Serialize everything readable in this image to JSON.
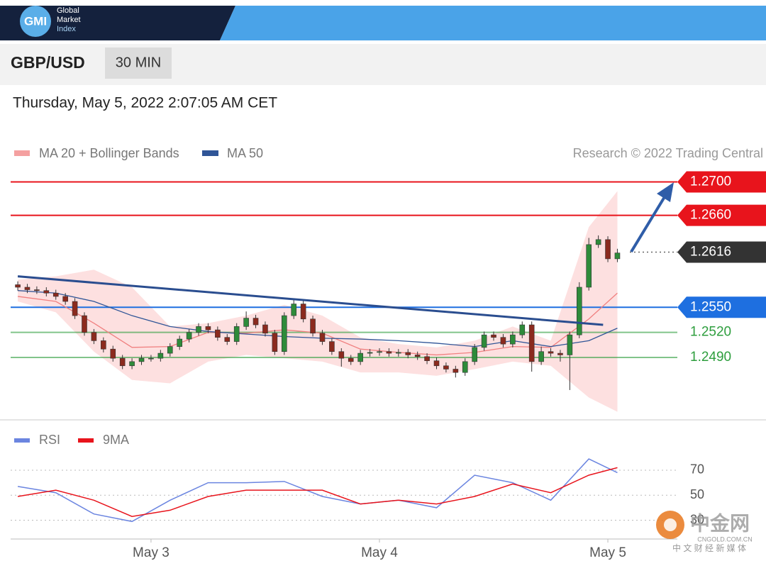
{
  "header": {
    "logo": "GMI",
    "brand": [
      "Global",
      "Market",
      "Index"
    ]
  },
  "symbol": "GBP/USD",
  "timeframe": "30 MIN",
  "timestamp": "Thursday, May 5, 2022 2:07:05 AM CET",
  "watermark": {
    "name": "中金网",
    "url": "CNGOLD.COM.CN",
    "tagline": "中 文 财 经 新 媒 体"
  },
  "chart_data": [
    {
      "type": "candlestick",
      "source": "Research © 2022 Trading Central",
      "xlim": [
        -0.75,
        69.3
      ],
      "ylim": [
        1.2417,
        1.2714
      ],
      "up_color": "#2e8b3a",
      "down_color": "#8b2a1e",
      "open": [
        1.2577,
        1.2574,
        1.2571,
        1.257,
        1.2567,
        1.2563,
        1.2557,
        1.254,
        1.252,
        1.251,
        1.25,
        1.2489,
        1.248,
        1.2485,
        1.2489,
        1.2489,
        1.2495,
        1.2503,
        1.2512,
        1.252,
        1.2527,
        1.2523,
        1.2514,
        1.2509,
        1.2527,
        1.2537,
        1.2529,
        1.2519,
        1.2497,
        1.254,
        1.2554,
        1.2536,
        1.2519,
        1.2509,
        1.2497,
        1.2489,
        1.2485,
        1.2495,
        1.2496,
        1.2497,
        1.2495,
        1.2496,
        1.2493,
        1.2491,
        1.2486,
        1.248,
        1.2476,
        1.2472,
        1.2485,
        1.2502,
        1.2517,
        1.2514,
        1.2506,
        1.2517,
        1.2529,
        1.2485,
        1.2497,
        1.2495,
        1.2493,
        1.2517,
        1.2574,
        1.2625,
        1.2631,
        1.2608
      ],
      "high": [
        1.2581,
        1.2578,
        1.2575,
        1.2574,
        1.2571,
        1.2567,
        1.2561,
        1.2544,
        1.2524,
        1.2514,
        1.2504,
        1.2493,
        1.2489,
        1.2493,
        1.2493,
        1.2499,
        1.2507,
        1.2516,
        1.2524,
        1.2531,
        1.2531,
        1.2527,
        1.2518,
        1.2531,
        1.2545,
        1.2541,
        1.2533,
        1.2523,
        1.2544,
        1.256,
        1.2558,
        1.254,
        1.2523,
        1.2513,
        1.2501,
        1.2493,
        1.2499,
        1.25,
        1.2501,
        1.2501,
        1.25,
        1.25,
        1.2497,
        1.2495,
        1.249,
        1.2484,
        1.248,
        1.2489,
        1.2506,
        1.2521,
        1.2521,
        1.2518,
        1.2521,
        1.2533,
        1.2533,
        1.2503,
        1.2501,
        1.2499,
        1.2521,
        1.258,
        1.2633,
        1.2636,
        1.2635,
        1.262
      ],
      "low": [
        1.257,
        1.2567,
        1.2566,
        1.2563,
        1.2559,
        1.2553,
        1.2536,
        1.2516,
        1.2506,
        1.2496,
        1.2485,
        1.2476,
        1.2476,
        1.2481,
        1.2485,
        1.2485,
        1.2491,
        1.2499,
        1.2508,
        1.2516,
        1.2519,
        1.251,
        1.2505,
        1.2505,
        1.2523,
        1.2525,
        1.2515,
        1.2493,
        1.2493,
        1.2536,
        1.2532,
        1.2515,
        1.2505,
        1.2493,
        1.2479,
        1.2481,
        1.2481,
        1.2491,
        1.2492,
        1.2491,
        1.2491,
        1.2489,
        1.2487,
        1.2482,
        1.2476,
        1.2472,
        1.2466,
        1.2468,
        1.2481,
        1.2498,
        1.251,
        1.2502,
        1.2502,
        1.2513,
        1.2473,
        1.2481,
        1.2491,
        1.2485,
        1.2451,
        1.2513,
        1.257,
        1.2621,
        1.2604,
        1.2604
      ],
      "close": [
        1.2574,
        1.2571,
        1.257,
        1.2567,
        1.2563,
        1.2557,
        1.254,
        1.252,
        1.251,
        1.25,
        1.2489,
        1.248,
        1.2485,
        1.2489,
        1.2489,
        1.2495,
        1.2503,
        1.2512,
        1.252,
        1.2527,
        1.2523,
        1.2514,
        1.2509,
        1.2527,
        1.2537,
        1.2529,
        1.2519,
        1.2497,
        1.254,
        1.2554,
        1.2536,
        1.2519,
        1.2509,
        1.2497,
        1.2489,
        1.2485,
        1.2495,
        1.2496,
        1.2497,
        1.2495,
        1.2496,
        1.2493,
        1.2491,
        1.2486,
        1.248,
        1.2476,
        1.2472,
        1.2485,
        1.2502,
        1.2517,
        1.2514,
        1.2506,
        1.2517,
        1.2529,
        1.2485,
        1.2497,
        1.2495,
        1.2493,
        1.2517,
        1.2574,
        1.2625,
        1.2631,
        1.2608,
        1.2615
      ],
      "overlays": [
        {
          "name": "MA 20 + Bollinger Bands",
          "color": "#f08080",
          "band_color": "#fde0e0",
          "x": [
            0,
            4,
            8,
            12,
            16,
            20,
            24,
            28,
            32,
            36,
            40,
            44,
            48,
            52,
            56,
            60,
            63
          ],
          "values": [
            1.2563,
            1.2557,
            1.2531,
            1.2502,
            1.2503,
            1.252,
            1.2519,
            1.2523,
            1.2519,
            1.25,
            1.2496,
            1.2493,
            1.2496,
            1.2503,
            1.2502,
            1.2536,
            1.2567
          ],
          "upper": [
            1.2583,
            1.2587,
            1.2595,
            1.2574,
            1.2527,
            1.2531,
            1.254,
            1.2553,
            1.254,
            1.2514,
            1.2506,
            1.2502,
            1.251,
            1.2527,
            1.251,
            1.2646,
            1.2689
          ],
          "lower": [
            1.2557,
            1.2544,
            1.2497,
            1.2463,
            1.2459,
            1.2485,
            1.2493,
            1.2489,
            1.2485,
            1.2472,
            1.2472,
            1.2468,
            1.2476,
            1.2485,
            1.248,
            1.2442,
            1.2425
          ]
        },
        {
          "name": "MA 50",
          "color": "#2f5597",
          "x": [
            0,
            4,
            8,
            12,
            16,
            20,
            24,
            28,
            32,
            36,
            40,
            44,
            48,
            52,
            56,
            60,
            63
          ],
          "values": [
            1.257,
            1.2567,
            1.2557,
            1.254,
            1.2527,
            1.2521,
            1.2518,
            1.2515,
            1.2513,
            1.2512,
            1.251,
            1.2507,
            1.2503,
            1.251,
            1.2503,
            1.251,
            1.2525
          ]
        }
      ],
      "trendline": {
        "color": "#2a4d8f",
        "x": [
          0,
          61.5
        ],
        "values": [
          1.2587,
          1.2529
        ]
      },
      "levels": [
        {
          "value": 1.27,
          "label": "1.2700",
          "color": "#e8141c",
          "style": "solid",
          "box": true
        },
        {
          "value": 1.266,
          "label": "1.2660",
          "color": "#e8141c",
          "style": "solid",
          "box": true
        },
        {
          "value": 1.2616,
          "label": "1.2616",
          "color": "#333333",
          "style": "dotted",
          "box": true
        },
        {
          "value": 1.255,
          "label": "1.2550",
          "color": "#1e6fe0",
          "style": "solid",
          "box": true
        },
        {
          "value": 1.252,
          "label": "1.2520",
          "color": "#2e9e3e",
          "style": "solid",
          "box": false
        },
        {
          "value": 1.249,
          "label": "1.2490",
          "color": "#2e9e3e",
          "style": "solid",
          "box": false
        }
      ]
    },
    {
      "type": "line",
      "xlim": [
        -0.75,
        69.3
      ],
      "ylim": [
        15,
        83
      ],
      "yticks": [
        30,
        50,
        70
      ],
      "xticks": [
        {
          "value": 14,
          "label": "May 3"
        },
        {
          "value": 38,
          "label": "May 4"
        },
        {
          "value": 62,
          "label": "May 5"
        }
      ],
      "grid": true,
      "series": [
        {
          "name": "RSI",
          "color": "#6b85e0",
          "x": [
            0,
            4,
            8,
            12,
            16,
            20,
            24,
            28,
            32,
            36,
            40,
            44,
            48,
            52,
            56,
            60,
            63
          ],
          "values": [
            57,
            52,
            35,
            29,
            46,
            60,
            60,
            61,
            49,
            43,
            46,
            40,
            66,
            60,
            46,
            79,
            68
          ]
        },
        {
          "name": "9MA",
          "color": "#e8141c",
          "x": [
            0,
            4,
            8,
            12,
            16,
            20,
            24,
            28,
            32,
            36,
            40,
            44,
            48,
            52,
            56,
            60,
            63
          ],
          "values": [
            49,
            54,
            46,
            33,
            38,
            49,
            54,
            54,
            54,
            43,
            46,
            43,
            49,
            59,
            52,
            66,
            72
          ]
        }
      ]
    }
  ]
}
